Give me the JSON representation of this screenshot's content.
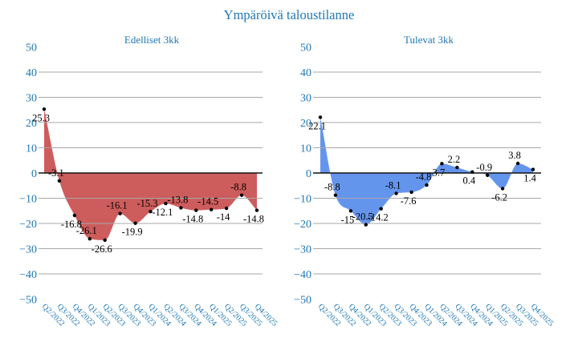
{
  "title": "Ympäröivä taloustilanne",
  "colors": {
    "title_blue": "#1f77b4",
    "tick_blue": "#1f77b4",
    "grid_gray": "#a7a7a7",
    "zero_line": "#111111",
    "dot_black": "#000000",
    "label_black": "#000000"
  },
  "chart_data": [
    {
      "type": "area",
      "title": "Edelliset 3kk",
      "fill_color": "#cd5c5c",
      "categories": [
        "Q2/2022",
        "Q3/2022",
        "Q4/2022",
        "Q1/2023",
        "Q2/2023",
        "Q3/2023",
        "Q4/2023",
        "Q1/2024",
        "Q2/2024",
        "Q3/2024",
        "Q4/2024",
        "Q1/2025",
        "Q2/2025",
        "Q3/2025",
        "Q4/2025"
      ],
      "values": [
        25.3,
        -3.1,
        -16.8,
        -26.1,
        -26.6,
        -16.1,
        -19.9,
        -15.3,
        -12.1,
        -13.8,
        -14.8,
        -14.5,
        -14,
        -8.8,
        -14.8
      ],
      "yticks": [
        50,
        40,
        30,
        20,
        10,
        0,
        -10,
        -20,
        -30,
        -40,
        -50
      ],
      "ylim": [
        -50,
        50
      ],
      "grid": true,
      "legend": false,
      "xlabel": "",
      "ylabel": ""
    },
    {
      "type": "area",
      "title": "Tulevat 3kk",
      "fill_color": "#6495ed",
      "categories": [
        "Q2/2022",
        "Q3/2022",
        "Q4/2022",
        "Q1/2023",
        "Q2/2023",
        "Q3/2023",
        "Q4/2023",
        "Q1/2024",
        "Q2/2024",
        "Q3/2024",
        "Q4/2024",
        "Q1/2025",
        "Q2/2025",
        "Q3/2025",
        "Q4/2025"
      ],
      "values": [
        22.1,
        -8.8,
        -15,
        -20.5,
        -14.2,
        -8.1,
        -7.6,
        -4.8,
        3.7,
        2.2,
        0.4,
        -0.9,
        -6.2,
        3.8,
        1.4
      ],
      "yticks": [
        50,
        40,
        30,
        20,
        10,
        0,
        -10,
        -20,
        -30,
        -40,
        -50
      ],
      "ylim": [
        -50,
        50
      ],
      "grid": true,
      "legend": false,
      "xlabel": "",
      "ylabel": ""
    }
  ]
}
